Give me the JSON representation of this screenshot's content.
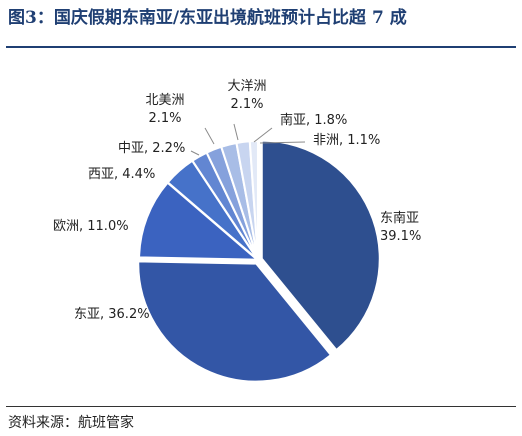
{
  "title": "图3：国庆假期东南亚/东亚出境航班预计占比超 7 成",
  "source": "资料来源：航班管家",
  "chart_data": {
    "type": "pie",
    "start": "12 o'clock, clockwise",
    "slices": [
      {
        "name": "东南亚",
        "value": 39.1,
        "label": "39.1%",
        "color": "#2e4f8f"
      },
      {
        "name": "东亚",
        "value": 36.2,
        "label": "36.2%",
        "color": "#3356a6"
      },
      {
        "name": "欧洲",
        "value": 11.0,
        "label": "11.0%",
        "color": "#3b63c0"
      },
      {
        "name": "西亚",
        "value": 4.4,
        "label": "4.4%",
        "color": "#4672c9"
      },
      {
        "name": "中亚",
        "value": 2.2,
        "label": "2.2%",
        "color": "#6286d2"
      },
      {
        "name": "北美洲",
        "value": 2.1,
        "label": "2.1%",
        "color": "#85a1dc"
      },
      {
        "name": "大洋洲",
        "value": 2.1,
        "label": "2.1%",
        "color": "#a8bde6"
      },
      {
        "name": "南亚",
        "value": 1.8,
        "label": "1.8%",
        "color": "#c8d5f0"
      },
      {
        "name": "非洲",
        "value": 1.1,
        "label": "1.1%",
        "color": "#e2e9f7"
      }
    ]
  }
}
